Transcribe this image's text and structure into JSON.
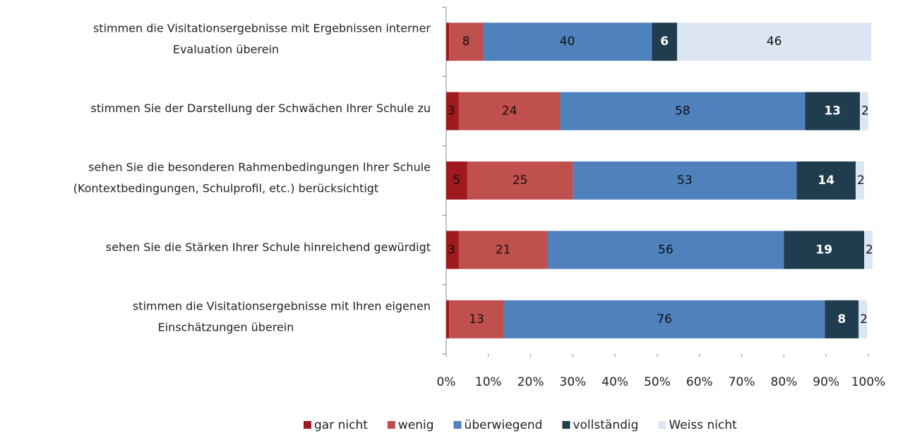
{
  "chart_data": {
    "type": "stacked-barh",
    "categories": [
      [
        "stimmen die Visitationsergebnisse mit Ergebnissen interner",
        "Evaluation  überein"
      ],
      [
        "stimmen Sie der Darstellung der Schwächen Ihrer Schule zu"
      ],
      [
        "sehen Sie die besonderen Rahmenbedingungen Ihrer Schule",
        "(Kontextbedingungen, Schulprofil, etc.) berücksichtigt"
      ],
      [
        "sehen Sie die Stärken Ihrer Schule hinreichend gewürdigt"
      ],
      [
        "stimmen die Visitationsergebnisse mit Ihren eigenen",
        "Einschätzungen überein"
      ]
    ],
    "series": [
      {
        "name": "gar nicht",
        "color": "#a0191c",
        "values": [
          0.7,
          3,
          5,
          3,
          0.7
        ],
        "value_labels": [
          null,
          "3",
          "5",
          "3",
          null
        ]
      },
      {
        "name": "wenig",
        "color": "#c0504d",
        "values": [
          8,
          24,
          25,
          21,
          13
        ]
      },
      {
        "name": "überwiegend",
        "color": "#4f81bd",
        "values": [
          40,
          58,
          53,
          56,
          76
        ]
      },
      {
        "name": "vollständig",
        "color": "#1f3d4f",
        "values": [
          6,
          13,
          14,
          19,
          8
        ]
      },
      {
        "name": "Weiss nicht",
        "color": "#dce6f2",
        "values": [
          46,
          2,
          2,
          2,
          2
        ]
      }
    ],
    "xlim": [
      0,
      100
    ],
    "xticks": [
      {
        "value": 0,
        "label": "0%"
      },
      {
        "value": 10,
        "label": "10%"
      },
      {
        "value": 20,
        "label": "20%"
      },
      {
        "value": 30,
        "label": "30%"
      },
      {
        "value": 40,
        "label": "40%"
      },
      {
        "value": 50,
        "label": "50%"
      },
      {
        "value": 60,
        "label": "60%"
      },
      {
        "value": 70,
        "label": "70%"
      },
      {
        "value": 80,
        "label": "80%"
      },
      {
        "value": 90,
        "label": "90%"
      },
      {
        "value": 100,
        "label": "100%"
      }
    ],
    "legend": "bottom"
  }
}
